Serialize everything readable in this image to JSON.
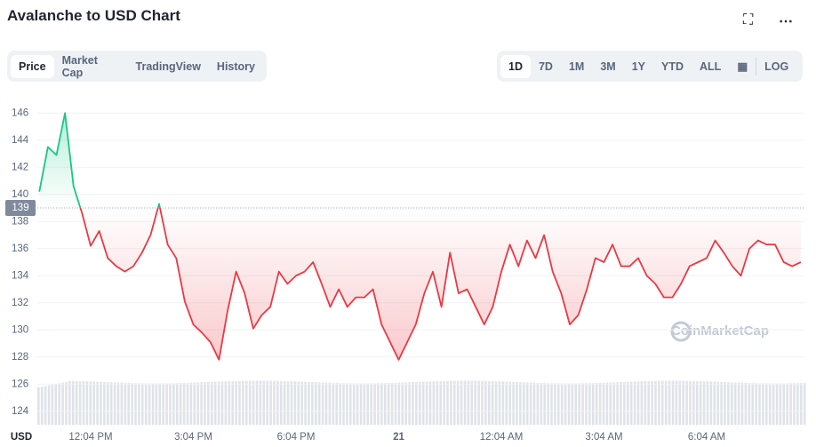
{
  "header": {
    "title": "Avalanche to USD Chart"
  },
  "tabs": [
    "Price",
    "Market Cap",
    "TradingView",
    "History"
  ],
  "ranges": [
    "1D",
    "7D",
    "1M",
    "3M",
    "1Y",
    "YTD",
    "ALL"
  ],
  "log_button": "LOG",
  "currency": "USD",
  "watermark": "CoinMarketCap",
  "chart_data": {
    "type": "line",
    "categories": [
      null,
      null,
      null,
      null,
      null,
      null,
      "12:04 PM",
      null,
      null,
      null,
      null,
      null,
      null,
      null,
      null,
      null,
      null,
      null,
      "3:04 PM",
      null,
      null,
      null,
      null,
      null,
      null,
      null,
      null,
      null,
      null,
      null,
      "6:04 PM",
      null,
      null,
      null,
      null,
      null,
      null,
      null,
      null,
      null,
      null,
      null,
      "21",
      null,
      null,
      null,
      null,
      null,
      null,
      null,
      null,
      null,
      null,
      null,
      "12:04 AM",
      null,
      null,
      null,
      null,
      null,
      null,
      null,
      null,
      null,
      null,
      null,
      "3:04 AM",
      null,
      null,
      null,
      null,
      null,
      null,
      null,
      null,
      null,
      null,
      null,
      "6:04 AM",
      null,
      null,
      null,
      null,
      null,
      null,
      null,
      null,
      null,
      null,
      null
    ],
    "values": [
      140.2,
      143.5,
      142.9,
      146.0,
      140.6,
      138.6,
      136.2,
      137.3,
      135.3,
      134.7,
      134.3,
      134.7,
      135.7,
      137.0,
      139.3,
      136.3,
      135.3,
      132.1,
      130.4,
      129.8,
      129.1,
      127.8,
      131.4,
      134.3,
      132.7,
      130.1,
      131.1,
      131.7,
      134.3,
      133.4,
      134.0,
      134.3,
      135.0,
      133.4,
      131.7,
      133.0,
      131.7,
      132.4,
      132.4,
      133.0,
      130.4,
      129.1,
      127.8,
      129.1,
      130.4,
      132.7,
      134.3,
      131.7,
      135.7,
      132.7,
      133.0,
      131.7,
      130.4,
      131.7,
      134.3,
      136.3,
      134.7,
      136.6,
      135.3,
      137.0,
      134.3,
      132.7,
      130.4,
      131.1,
      133.0,
      135.3,
      135.0,
      136.3,
      134.7,
      134.7,
      135.3,
      134.0,
      133.4,
      132.4,
      132.4,
      133.4,
      134.7,
      135.0,
      135.3,
      136.6,
      135.7,
      134.7,
      134.0,
      136.0,
      136.6,
      136.3,
      136.3,
      135.0,
      134.7,
      135.0
    ],
    "baseline": 139,
    "up_color": "#16c784",
    "down_color": "#ea3943",
    "ylim": [
      123,
      147
    ],
    "yticks": [
      124,
      126,
      128,
      130,
      132,
      134,
      136,
      138,
      140,
      142,
      144,
      146
    ],
    "grid": true
  }
}
